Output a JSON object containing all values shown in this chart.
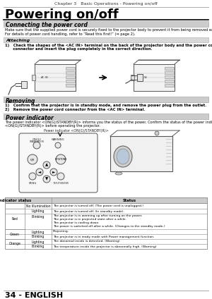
{
  "page_title": "Powering on/off",
  "chapter_header": "Chapter 3   Basic Operations - Powering on/off",
  "section1_title": "Connecting the power cord",
  "section1_note1": "Make sure that the supplied power cord is securely fixed to the projector body to prevent it from being removed easily.",
  "section1_note2": "For details of power cord handling, refer to “Read this first!” (⇒ page 2).",
  "attaching_title": "Attaching",
  "step1_bold": "1)   Check the shapes of the <AC IN> terminal on the back of the projector body and the power cord",
  "step1_bold2": "      connector and insert the plug completely in the correct direction.",
  "removing_title": "Removing",
  "removing_step1": "1)   Confirm that the projector is in standby mode, and remove the power plug from the outlet.",
  "removing_step2": "2)   Remove the power cord connector from the <AC IN> terminal.",
  "power_indicator_title": "Power indicator",
  "power_indicator_note1": "The power indicator <ON(G)/STANDBY(R)> informs you the status of the power. Confirm the status of the power indicator",
  "power_indicator_note2": "<ON(G)/STANDBY(R)> before operating the projector.",
  "power_indicator_label": "Power indicator <ON(G)/STANDBY(R)>",
  "table_col1_header": "Indicator status",
  "table_col2_header": "Status",
  "footer": "34 - ENGLISH",
  "bg_color": "#ffffff"
}
